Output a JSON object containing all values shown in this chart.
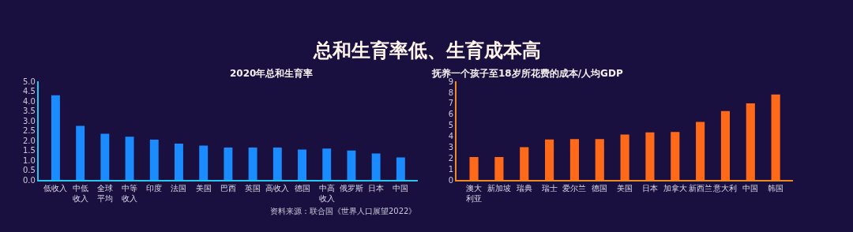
{
  "chart_data": [
    {
      "type": "bar",
      "title": "总和生育率低、生育成本高",
      "subtitle": "2020年总和生育率",
      "categories": [
        "低收入",
        "中低收入",
        "全球平均",
        "中等收入",
        "印度",
        "法国",
        "美国",
        "巴西",
        "英国",
        "高收入",
        "德国",
        "中高收入",
        "俄罗斯",
        "日本",
        "中国"
      ],
      "series": [
        {
          "color": "#1a8cff",
          "values": [
            4.3,
            2.75,
            2.35,
            2.2,
            2.05,
            1.85,
            1.75,
            1.65,
            1.65,
            1.65,
            1.55,
            1.6,
            1.5,
            1.35,
            1.15
          ]
        }
      ],
      "ylim": [
        0,
        5
      ],
      "yticks": [
        {
          "value": 0,
          "label": "0.0"
        },
        {
          "value": 0.5,
          "label": "0.5"
        },
        {
          "value": 1,
          "label": "1.0"
        },
        {
          "value": 1.5,
          "label": "1.5"
        },
        {
          "value": 2,
          "label": "2.0"
        },
        {
          "value": 2.5,
          "label": "2.5"
        },
        {
          "value": 3,
          "label": "3.0"
        },
        {
          "value": 3.5,
          "label": "3.5"
        },
        {
          "value": 4,
          "label": "4.0"
        },
        {
          "value": 4.5,
          "label": "4.5"
        },
        {
          "value": 5,
          "label": "5.0"
        }
      ],
      "grid": false,
      "annotations": [
        "资料来源：联合国《世界人口展望2022》"
      ]
    },
    {
      "type": "bar",
      "subtitle": "抚养一个孩子至18岁所花费的成本/人均GDP",
      "categories": [
        "澳大利亚",
        "新加坡",
        "瑞典",
        "瑞士",
        "爱尔兰",
        "德国",
        "美国",
        "日本",
        "加拿大",
        "新西兰",
        "意大利",
        "中国",
        "韩国"
      ],
      "series": [
        {
          "color": "#ff6a1a",
          "values": [
            2.1,
            2.1,
            3.0,
            3.7,
            3.75,
            3.75,
            4.15,
            4.35,
            4.4,
            5.3,
            6.3,
            7.0,
            7.8
          ]
        }
      ],
      "ylim": [
        0,
        9
      ],
      "yticks": [
        0,
        1,
        2,
        3,
        4,
        5,
        6,
        7,
        8,
        9
      ],
      "grid": false
    }
  ]
}
